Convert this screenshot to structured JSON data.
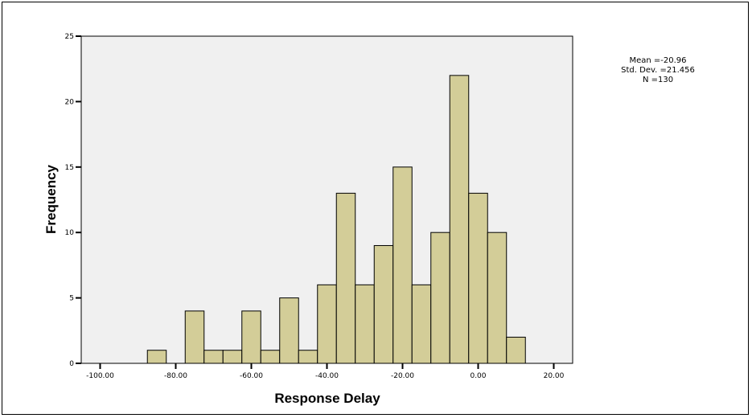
{
  "chart_data": {
    "type": "bar",
    "title": "",
    "xlabel": "Response Delay",
    "ylabel": "Frequency",
    "bin_width": 5,
    "bins": [
      {
        "x0": -87.5,
        "x1": -82.5,
        "count": 1
      },
      {
        "x0": -82.5,
        "x1": -77.5,
        "count": 0
      },
      {
        "x0": -77.5,
        "x1": -72.5,
        "count": 4
      },
      {
        "x0": -72.5,
        "x1": -67.5,
        "count": 1
      },
      {
        "x0": -67.5,
        "x1": -62.5,
        "count": 1
      },
      {
        "x0": -62.5,
        "x1": -57.5,
        "count": 4
      },
      {
        "x0": -57.5,
        "x1": -52.5,
        "count": 1
      },
      {
        "x0": -52.5,
        "x1": -47.5,
        "count": 5
      },
      {
        "x0": -47.5,
        "x1": -42.5,
        "count": 1
      },
      {
        "x0": -42.5,
        "x1": -37.5,
        "count": 6
      },
      {
        "x0": -37.5,
        "x1": -32.5,
        "count": 13
      },
      {
        "x0": -32.5,
        "x1": -27.5,
        "count": 6
      },
      {
        "x0": -27.5,
        "x1": -22.5,
        "count": 9
      },
      {
        "x0": -22.5,
        "x1": -17.5,
        "count": 15
      },
      {
        "x0": -17.5,
        "x1": -12.5,
        "count": 6
      },
      {
        "x0": -12.5,
        "x1": -7.5,
        "count": 10
      },
      {
        "x0": -7.5,
        "x1": -2.5,
        "count": 22
      },
      {
        "x0": -2.5,
        "x1": 2.5,
        "count": 13
      },
      {
        "x0": 2.5,
        "x1": 7.5,
        "count": 10
      },
      {
        "x0": 7.5,
        "x1": 12.5,
        "count": 2
      }
    ],
    "xlim": [
      -105,
      25
    ],
    "ylim": [
      0,
      25
    ],
    "xticks": [
      {
        "value": -100,
        "label": "-100.00"
      },
      {
        "value": -80,
        "label": "-80.00"
      },
      {
        "value": -60,
        "label": "-60.00"
      },
      {
        "value": -40,
        "label": "-40.00"
      },
      {
        "value": -20,
        "label": "-20.00"
      },
      {
        "value": 0,
        "label": "0.00"
      },
      {
        "value": 20,
        "label": "20.00"
      }
    ],
    "yticks": [
      {
        "value": 0,
        "label": "0"
      },
      {
        "value": 5,
        "label": "5"
      },
      {
        "value": 10,
        "label": "10"
      },
      {
        "value": 15,
        "label": "15"
      },
      {
        "value": 20,
        "label": "20"
      },
      {
        "value": 25,
        "label": "25"
      }
    ],
    "grid": false,
    "legend": "top-right",
    "stats": {
      "mean": "Mean =-20.96",
      "std_dev": "Std. Dev. =21.456",
      "n": "N =130"
    },
    "colors": {
      "bar_fill": "#d3cd98",
      "bar_stroke": "#000000",
      "plot_background": "#f0f0f0"
    }
  }
}
